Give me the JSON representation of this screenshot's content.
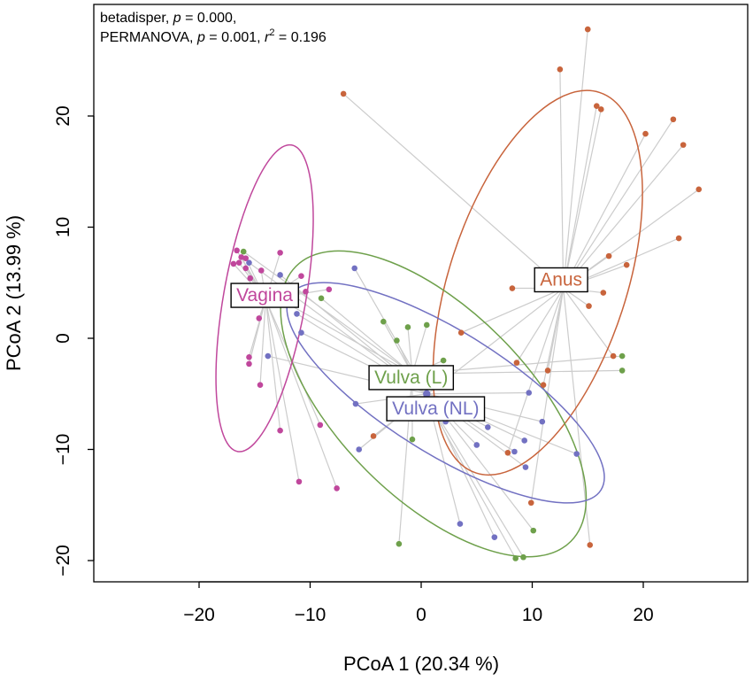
{
  "chart_data": {
    "type": "scatter",
    "subtype": "PCoA ordination with group centroid spiders and ellipses",
    "stats": {
      "line1": {
        "pre": "betadisper, ",
        "p_sym": "p",
        "post": " = 0.000,"
      },
      "line2": {
        "pre": "PERMANOVA, ",
        "p_sym": "p",
        "mid": " = 0.001, ",
        "r_sym": "r",
        "sup": "2",
        "post": " = 0.196"
      }
    },
    "xlabel": "PCoA 1 (20.34 %)",
    "ylabel": "PCoA 2 (13.99 %)",
    "xlim": [
      -29,
      29
    ],
    "ylim": [
      -21.5,
      29
    ],
    "xticks": [
      {
        "value": -20,
        "label": "−20"
      },
      {
        "value": -10,
        "label": "−10"
      },
      {
        "value": 0,
        "label": "0"
      },
      {
        "value": 10,
        "label": "10"
      },
      {
        "value": 20,
        "label": "20"
      }
    ],
    "yticks": [
      {
        "value": -20,
        "label": "−20"
      },
      {
        "value": -10,
        "label": "−10"
      },
      {
        "value": 0,
        "label": "0"
      },
      {
        "value": 10,
        "label": "10"
      },
      {
        "value": 20,
        "label": "20"
      }
    ],
    "spider_color": "#cccccc",
    "groups": [
      {
        "name": "Anus",
        "label": "Anus",
        "color": "#c8643c",
        "centroid": [
          12.8,
          4.5
        ],
        "ellipse": {
          "cx": 10.5,
          "cy": 5.0,
          "rx": 8.0,
          "ry": 18.0,
          "angle": 18
        },
        "points": [
          [
            15,
            27.8
          ],
          [
            12.5,
            24.2
          ],
          [
            15.8,
            20.9
          ],
          [
            16.2,
            20.6
          ],
          [
            -7,
            22
          ],
          [
            22.7,
            19.7
          ],
          [
            20.2,
            18.4
          ],
          [
            23.6,
            17.4
          ],
          [
            25,
            13.4
          ],
          [
            23.2,
            9
          ],
          [
            16.9,
            7.4
          ],
          [
            18.5,
            6.6
          ],
          [
            16.4,
            4.1
          ],
          [
            15.1,
            2.9
          ],
          [
            8.2,
            4.5
          ],
          [
            3.6,
            0.5
          ],
          [
            17.3,
            -1.6
          ],
          [
            11.4,
            -2.9
          ],
          [
            8.6,
            -2.2
          ],
          [
            11,
            -4.2
          ],
          [
            -4.3,
            -8.8
          ],
          [
            7.8,
            -10.3
          ],
          [
            9.9,
            -14.8
          ],
          [
            15.2,
            -18.6
          ]
        ]
      },
      {
        "name": "Vulva (L)",
        "label": "Vulva (L)",
        "color": "#6ea04b",
        "centroid": [
          -0.8,
          -3.2
        ],
        "ellipse": {
          "cx": 1.1,
          "cy": -5.9,
          "rx": 8.5,
          "ry": 17.5,
          "angle": -45
        },
        "points": [
          [
            -9,
            3.6
          ],
          [
            -3.4,
            1.5
          ],
          [
            -1.2,
            1
          ],
          [
            0.5,
            1.2
          ],
          [
            -2.2,
            -0.2
          ],
          [
            -2,
            -18.5
          ],
          [
            -0.8,
            -9.1
          ],
          [
            2,
            -2
          ],
          [
            8.5,
            -19.8
          ],
          [
            9.2,
            -19.7
          ],
          [
            10.1,
            -17.3
          ],
          [
            18.1,
            -1.6
          ],
          [
            18.1,
            -2.9
          ],
          [
            -16,
            7.8
          ],
          [
            -14.5,
            4.5
          ]
        ]
      },
      {
        "name": "Vulva (NL)",
        "label": "Vulva (NL)",
        "color": "#7271c2",
        "centroid": [
          0.5,
          -5
        ],
        "ellipse": {
          "cx": 2.2,
          "cy": -4.9,
          "rx": 5.5,
          "ry": 16.5,
          "angle": -58
        },
        "points": [
          [
            -6,
            6.3
          ],
          [
            -12.7,
            5.7
          ],
          [
            -11.2,
            2.2
          ],
          [
            -10.8,
            0.5
          ],
          [
            -13.8,
            -1.6
          ],
          [
            -15.5,
            6.8
          ],
          [
            -5.9,
            -5.9
          ],
          [
            -5.6,
            -10
          ],
          [
            -0.3,
            -3.4
          ],
          [
            2.2,
            -7.5
          ],
          [
            3.5,
            -16.7
          ],
          [
            5,
            -9.6
          ],
          [
            6,
            -8
          ],
          [
            6.6,
            -17.9
          ],
          [
            8.4,
            -10.2
          ],
          [
            9.3,
            -9.2
          ],
          [
            9.4,
            -11.6
          ],
          [
            9.7,
            -4.9
          ],
          [
            10.9,
            -7.5
          ],
          [
            14,
            -10.4
          ]
        ]
      },
      {
        "name": "Vagina",
        "label": "Vagina",
        "color": "#c0479c",
        "centroid": [
          -14,
          3.5
        ],
        "ellipse": {
          "cx": -14.1,
          "cy": 3.6,
          "rx": 3.7,
          "ry": 14.0,
          "angle": 10
        },
        "points": [
          [
            -16.6,
            7.9
          ],
          [
            -16.2,
            7.3
          ],
          [
            -15.8,
            7.2
          ],
          [
            -16.4,
            6.8
          ],
          [
            -15.8,
            6.3
          ],
          [
            -16.9,
            6.7
          ],
          [
            -15.4,
            5.4
          ],
          [
            -14.4,
            6.1
          ],
          [
            -12.7,
            7.7
          ],
          [
            -10.8,
            5.6
          ],
          [
            -10.4,
            4.2
          ],
          [
            -8.3,
            4.4
          ],
          [
            -15.5,
            -1.7
          ],
          [
            -15.5,
            -2.3
          ],
          [
            -14.5,
            -4.2
          ],
          [
            -14.6,
            1.8
          ],
          [
            -12.7,
            -8.3
          ],
          [
            -11,
            -12.9
          ],
          [
            -9.1,
            -7.8
          ],
          [
            -7.6,
            -13.5
          ]
        ]
      }
    ],
    "label_positions": {
      "Anus": [
        12.6,
        5.3
      ],
      "Vagina": [
        -14.1,
        3.9
      ],
      "Vulva (L)": [
        -0.9,
        -3.5
      ],
      "Vulva (NL)": [
        1.3,
        -6.3
      ]
    }
  }
}
